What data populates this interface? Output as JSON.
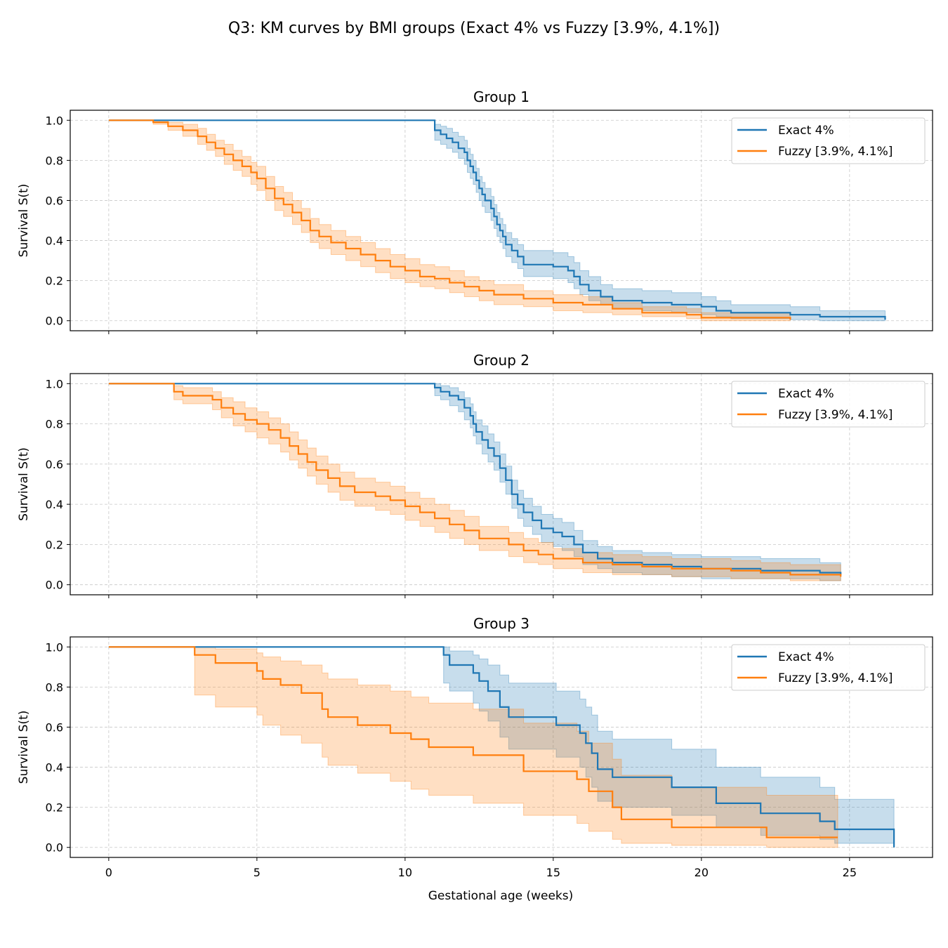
{
  "figure": {
    "title": "Q3: KM curves by BMI groups (Exact 4% vs Fuzzy [3.9%, 4.1%])",
    "xlabel": "Gestational age (weeks)",
    "ylabel": "Survival S(t)"
  },
  "colors": {
    "exact": "#1f77b4",
    "fuzzy": "#ff7f0e"
  },
  "chart_data": [
    {
      "type": "line",
      "title": "Group 1",
      "xlabel": "",
      "ylabel": "Survival S(t)",
      "xlim": [
        -1.3,
        27.8
      ],
      "ylim": [
        -0.05,
        1.05
      ],
      "xticks": [
        0,
        5,
        10,
        15,
        20,
        25
      ],
      "yticks": [
        0.0,
        0.2,
        0.4,
        0.6,
        0.8,
        1.0
      ],
      "ytick_labels": [
        "0.0",
        "0.2",
        "0.4",
        "0.6",
        "0.8",
        "1.0"
      ],
      "grid": true,
      "legend": "top-right",
      "series": [
        {
          "name": "Exact 4%",
          "color": "#1f77b4",
          "x": [
            0,
            11.0,
            11.2,
            11.4,
            11.6,
            11.8,
            12.0,
            12.1,
            12.2,
            12.3,
            12.4,
            12.5,
            12.6,
            12.7,
            12.9,
            13.0,
            13.1,
            13.2,
            13.3,
            13.4,
            13.6,
            13.8,
            14.0,
            15.0,
            15.5,
            15.7,
            15.9,
            16.2,
            16.6,
            17.0,
            18.0,
            19.0,
            20.0,
            20.5,
            21.0,
            23.0,
            24.0,
            26.2
          ],
          "y": [
            1.0,
            0.95,
            0.93,
            0.91,
            0.89,
            0.86,
            0.84,
            0.8,
            0.77,
            0.74,
            0.7,
            0.66,
            0.63,
            0.6,
            0.56,
            0.52,
            0.48,
            0.45,
            0.42,
            0.38,
            0.35,
            0.32,
            0.28,
            0.27,
            0.25,
            0.22,
            0.18,
            0.15,
            0.12,
            0.1,
            0.09,
            0.08,
            0.07,
            0.05,
            0.04,
            0.03,
            0.02,
            0.005
          ],
          "ci_lower": [
            1.0,
            0.9,
            0.88,
            0.86,
            0.84,
            0.81,
            0.78,
            0.74,
            0.71,
            0.68,
            0.64,
            0.6,
            0.57,
            0.54,
            0.5,
            0.46,
            0.42,
            0.39,
            0.36,
            0.32,
            0.29,
            0.26,
            0.22,
            0.21,
            0.19,
            0.16,
            0.13,
            0.1,
            0.08,
            0.06,
            0.05,
            0.04,
            0.03,
            0.02,
            0.01,
            0.005,
            0.0,
            0.0
          ],
          "ci_upper": [
            1.0,
            0.98,
            0.97,
            0.96,
            0.94,
            0.92,
            0.9,
            0.86,
            0.83,
            0.8,
            0.76,
            0.72,
            0.69,
            0.66,
            0.62,
            0.58,
            0.54,
            0.51,
            0.48,
            0.44,
            0.41,
            0.38,
            0.35,
            0.34,
            0.32,
            0.29,
            0.25,
            0.22,
            0.18,
            0.16,
            0.15,
            0.14,
            0.12,
            0.1,
            0.08,
            0.07,
            0.05,
            0.04
          ]
        },
        {
          "name": "Fuzzy [3.9%, 4.1%]",
          "color": "#ff7f0e",
          "x": [
            0,
            1.5,
            2.0,
            2.5,
            3.0,
            3.3,
            3.6,
            3.9,
            4.2,
            4.5,
            4.8,
            5.0,
            5.3,
            5.6,
            5.9,
            6.2,
            6.5,
            6.8,
            7.1,
            7.5,
            8.0,
            8.5,
            9.0,
            9.5,
            10.0,
            10.5,
            11.0,
            11.5,
            12.0,
            12.5,
            13.0,
            14.0,
            15.0,
            16.0,
            17.0,
            18.0,
            19.5,
            20.0,
            23.0
          ],
          "y": [
            1.0,
            0.99,
            0.97,
            0.95,
            0.92,
            0.89,
            0.86,
            0.83,
            0.8,
            0.77,
            0.74,
            0.71,
            0.66,
            0.61,
            0.58,
            0.54,
            0.5,
            0.45,
            0.42,
            0.39,
            0.36,
            0.33,
            0.3,
            0.27,
            0.25,
            0.22,
            0.21,
            0.19,
            0.17,
            0.15,
            0.13,
            0.11,
            0.09,
            0.08,
            0.06,
            0.04,
            0.03,
            0.015,
            0.005
          ],
          "ci_lower": [
            1.0,
            0.98,
            0.95,
            0.92,
            0.88,
            0.85,
            0.82,
            0.78,
            0.75,
            0.72,
            0.68,
            0.65,
            0.6,
            0.55,
            0.52,
            0.48,
            0.44,
            0.39,
            0.36,
            0.33,
            0.3,
            0.27,
            0.24,
            0.21,
            0.19,
            0.17,
            0.16,
            0.14,
            0.12,
            0.1,
            0.08,
            0.07,
            0.05,
            0.04,
            0.03,
            0.02,
            0.01,
            0.0,
            0.0
          ],
          "ci_upper": [
            1.0,
            1.0,
            0.99,
            0.98,
            0.96,
            0.93,
            0.9,
            0.88,
            0.85,
            0.82,
            0.79,
            0.77,
            0.72,
            0.67,
            0.64,
            0.6,
            0.56,
            0.51,
            0.48,
            0.45,
            0.42,
            0.39,
            0.36,
            0.33,
            0.31,
            0.28,
            0.27,
            0.25,
            0.22,
            0.2,
            0.18,
            0.15,
            0.13,
            0.12,
            0.09,
            0.07,
            0.06,
            0.04,
            0.03
          ]
        }
      ]
    },
    {
      "type": "line",
      "title": "Group 2",
      "xlabel": "",
      "ylabel": "Survival S(t)",
      "xlim": [
        -1.3,
        27.8
      ],
      "ylim": [
        -0.05,
        1.05
      ],
      "xticks": [
        0,
        5,
        10,
        15,
        20,
        25
      ],
      "yticks": [
        0.0,
        0.2,
        0.4,
        0.6,
        0.8,
        1.0
      ],
      "ytick_labels": [
        "0.0",
        "0.2",
        "0.4",
        "0.6",
        "0.8",
        "1.0"
      ],
      "grid": true,
      "legend": "top-right",
      "series": [
        {
          "name": "Exact 4%",
          "color": "#1f77b4",
          "x": [
            0,
            11.0,
            11.2,
            11.5,
            11.8,
            12.0,
            12.2,
            12.3,
            12.4,
            12.6,
            12.8,
            13.0,
            13.2,
            13.4,
            13.6,
            13.8,
            14.0,
            14.3,
            14.6,
            15.0,
            15.3,
            15.7,
            16.0,
            16.5,
            17.0,
            18.0,
            19.0,
            20.0,
            22.0,
            24.0,
            24.7
          ],
          "y": [
            1.0,
            0.98,
            0.96,
            0.94,
            0.92,
            0.88,
            0.84,
            0.8,
            0.76,
            0.72,
            0.68,
            0.64,
            0.58,
            0.52,
            0.45,
            0.4,
            0.36,
            0.32,
            0.28,
            0.26,
            0.24,
            0.2,
            0.16,
            0.13,
            0.11,
            0.1,
            0.09,
            0.08,
            0.07,
            0.06,
            0.05
          ],
          "ci_lower": [
            1.0,
            0.94,
            0.92,
            0.89,
            0.86,
            0.82,
            0.78,
            0.74,
            0.7,
            0.65,
            0.61,
            0.57,
            0.51,
            0.45,
            0.38,
            0.33,
            0.29,
            0.25,
            0.21,
            0.19,
            0.17,
            0.14,
            0.1,
            0.08,
            0.06,
            0.05,
            0.04,
            0.03,
            0.03,
            0.02,
            0.02
          ],
          "ci_upper": [
            1.0,
            1.0,
            0.99,
            0.98,
            0.96,
            0.93,
            0.9,
            0.86,
            0.82,
            0.79,
            0.75,
            0.71,
            0.65,
            0.59,
            0.52,
            0.47,
            0.43,
            0.39,
            0.35,
            0.33,
            0.31,
            0.27,
            0.22,
            0.19,
            0.17,
            0.16,
            0.15,
            0.14,
            0.13,
            0.11,
            0.11
          ]
        },
        {
          "name": "Fuzzy [3.9%, 4.1%]",
          "color": "#ff7f0e",
          "x": [
            0,
            2.2,
            2.5,
            3.5,
            3.8,
            4.2,
            4.6,
            5.0,
            5.4,
            5.8,
            6.1,
            6.4,
            6.7,
            7.0,
            7.4,
            7.8,
            8.3,
            9.0,
            9.5,
            10.0,
            10.5,
            11.0,
            11.5,
            12.0,
            12.5,
            13.5,
            14.0,
            14.5,
            15.0,
            16.0,
            17.0,
            18.0,
            19.0,
            21.0,
            22.0,
            23.0,
            24.7
          ],
          "y": [
            1.0,
            0.96,
            0.94,
            0.92,
            0.88,
            0.85,
            0.82,
            0.8,
            0.77,
            0.73,
            0.69,
            0.65,
            0.61,
            0.57,
            0.53,
            0.49,
            0.46,
            0.44,
            0.42,
            0.39,
            0.36,
            0.33,
            0.3,
            0.27,
            0.23,
            0.2,
            0.17,
            0.15,
            0.13,
            0.11,
            0.1,
            0.09,
            0.08,
            0.07,
            0.06,
            0.05,
            0.04
          ],
          "ci_lower": [
            1.0,
            0.92,
            0.9,
            0.87,
            0.83,
            0.79,
            0.76,
            0.73,
            0.7,
            0.66,
            0.62,
            0.58,
            0.54,
            0.5,
            0.46,
            0.42,
            0.39,
            0.37,
            0.35,
            0.32,
            0.29,
            0.26,
            0.23,
            0.2,
            0.17,
            0.14,
            0.11,
            0.1,
            0.08,
            0.06,
            0.05,
            0.05,
            0.04,
            0.03,
            0.03,
            0.02,
            0.02
          ],
          "ci_upper": [
            1.0,
            0.99,
            0.98,
            0.96,
            0.93,
            0.91,
            0.88,
            0.86,
            0.83,
            0.8,
            0.76,
            0.72,
            0.68,
            0.64,
            0.6,
            0.56,
            0.53,
            0.51,
            0.49,
            0.46,
            0.43,
            0.4,
            0.37,
            0.34,
            0.29,
            0.26,
            0.23,
            0.21,
            0.18,
            0.16,
            0.15,
            0.14,
            0.13,
            0.12,
            0.11,
            0.1,
            0.09
          ]
        }
      ]
    },
    {
      "type": "line",
      "title": "Group 3",
      "xlabel": "Gestational age (weeks)",
      "ylabel": "Survival S(t)",
      "xlim": [
        -1.3,
        27.8
      ],
      "ylim": [
        -0.05,
        1.05
      ],
      "xticks": [
        0,
        5,
        10,
        15,
        20,
        25
      ],
      "yticks": [
        0.0,
        0.2,
        0.4,
        0.6,
        0.8,
        1.0
      ],
      "ytick_labels": [
        "0.0",
        "0.2",
        "0.4",
        "0.6",
        "0.8",
        "1.0"
      ],
      "grid": true,
      "legend": "top-right",
      "series": [
        {
          "name": "Exact 4%",
          "color": "#1f77b4",
          "x": [
            0,
            11.3,
            11.5,
            12.3,
            12.5,
            12.8,
            13.2,
            13.5,
            15.1,
            15.9,
            16.1,
            16.3,
            16.5,
            17.0,
            19.0,
            20.5,
            22.0,
            24.0,
            24.5,
            26.5
          ],
          "y": [
            1.0,
            0.96,
            0.91,
            0.87,
            0.83,
            0.78,
            0.7,
            0.65,
            0.61,
            0.57,
            0.52,
            0.47,
            0.39,
            0.35,
            0.3,
            0.22,
            0.17,
            0.13,
            0.09,
            0.0
          ],
          "ci_lower": [
            1.0,
            0.82,
            0.78,
            0.72,
            0.68,
            0.63,
            0.55,
            0.49,
            0.45,
            0.4,
            0.35,
            0.3,
            0.23,
            0.2,
            0.16,
            0.1,
            0.06,
            0.04,
            0.02,
            0.0
          ],
          "ci_upper": [
            1.0,
            1.0,
            0.98,
            0.96,
            0.94,
            0.91,
            0.86,
            0.82,
            0.78,
            0.74,
            0.7,
            0.66,
            0.58,
            0.54,
            0.49,
            0.4,
            0.35,
            0.3,
            0.24,
            0.0
          ]
        },
        {
          "name": "Fuzzy [3.9%, 4.1%]",
          "color": "#ff7f0e",
          "x": [
            0,
            2.9,
            3.6,
            5.0,
            5.2,
            5.8,
            6.5,
            7.2,
            7.4,
            8.4,
            9.5,
            10.2,
            10.8,
            12.3,
            14.0,
            15.8,
            16.2,
            17.0,
            17.3,
            19.0,
            22.2,
            24.6
          ],
          "y": [
            1.0,
            0.96,
            0.92,
            0.88,
            0.84,
            0.81,
            0.77,
            0.69,
            0.65,
            0.61,
            0.57,
            0.54,
            0.5,
            0.46,
            0.38,
            0.34,
            0.28,
            0.2,
            0.14,
            0.1,
            0.05,
            0.05
          ],
          "ci_lower": [
            1.0,
            0.76,
            0.7,
            0.66,
            0.61,
            0.56,
            0.52,
            0.45,
            0.41,
            0.37,
            0.33,
            0.29,
            0.26,
            0.22,
            0.16,
            0.12,
            0.08,
            0.04,
            0.02,
            0.01,
            0.0,
            0.0
          ],
          "ci_upper": [
            1.0,
            1.0,
            0.99,
            0.97,
            0.95,
            0.93,
            0.91,
            0.87,
            0.84,
            0.81,
            0.78,
            0.75,
            0.72,
            0.69,
            0.62,
            0.58,
            0.52,
            0.44,
            0.36,
            0.3,
            0.26,
            0.26
          ]
        }
      ]
    }
  ]
}
